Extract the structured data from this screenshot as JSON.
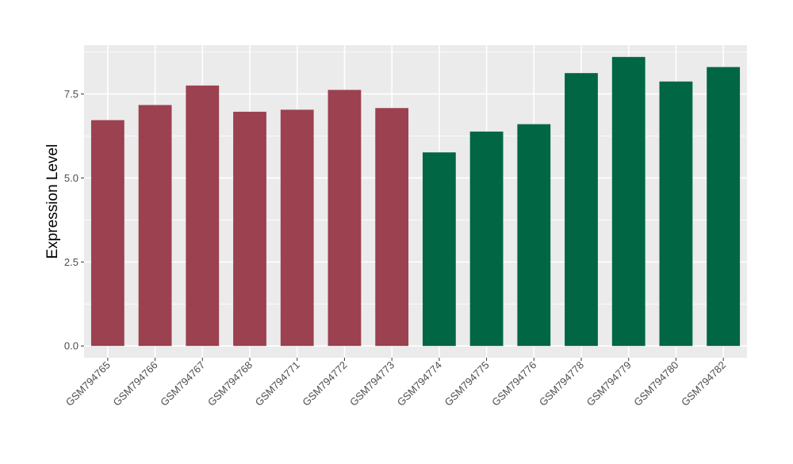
{
  "chart_data": {
    "type": "bar",
    "title": "",
    "xlabel": "",
    "ylabel": "Expression Level",
    "ylim": [
      -0.35,
      8.95
    ],
    "yticks": [
      0.0,
      2.5,
      5.0,
      7.5
    ],
    "ytick_labels": [
      "0.0",
      "2.5",
      "5.0",
      "7.5"
    ],
    "grid": true,
    "legend": "none",
    "categories": [
      "GSM794765",
      "GSM794766",
      "GSM794767",
      "GSM794768",
      "GSM794771",
      "GSM794772",
      "GSM794773",
      "GSM794774",
      "GSM794775",
      "GSM794776",
      "GSM794778",
      "GSM794779",
      "GSM794780",
      "GSM794782"
    ],
    "values": [
      6.72,
      7.17,
      7.75,
      6.97,
      7.03,
      7.62,
      7.08,
      5.76,
      6.38,
      6.6,
      8.12,
      8.6,
      7.87,
      8.3
    ],
    "bar_colors": [
      "#9b4150",
      "#9b4150",
      "#9b4150",
      "#9b4150",
      "#9b4150",
      "#9b4150",
      "#9b4150",
      "#006644",
      "#006644",
      "#006644",
      "#006644",
      "#006644",
      "#006644",
      "#006644"
    ],
    "panel_background": "#ebebeb",
    "grid_color": "#ffffff"
  }
}
